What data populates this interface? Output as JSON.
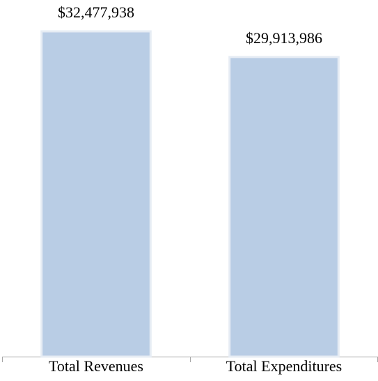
{
  "chart_data": {
    "type": "bar",
    "categories": [
      "Total Revenues",
      "Total Expenditures"
    ],
    "values": [
      32477938,
      29913986
    ],
    "value_labels": [
      "$32,477,938",
      "$29,913,986"
    ],
    "color": "#b9cde5"
  }
}
